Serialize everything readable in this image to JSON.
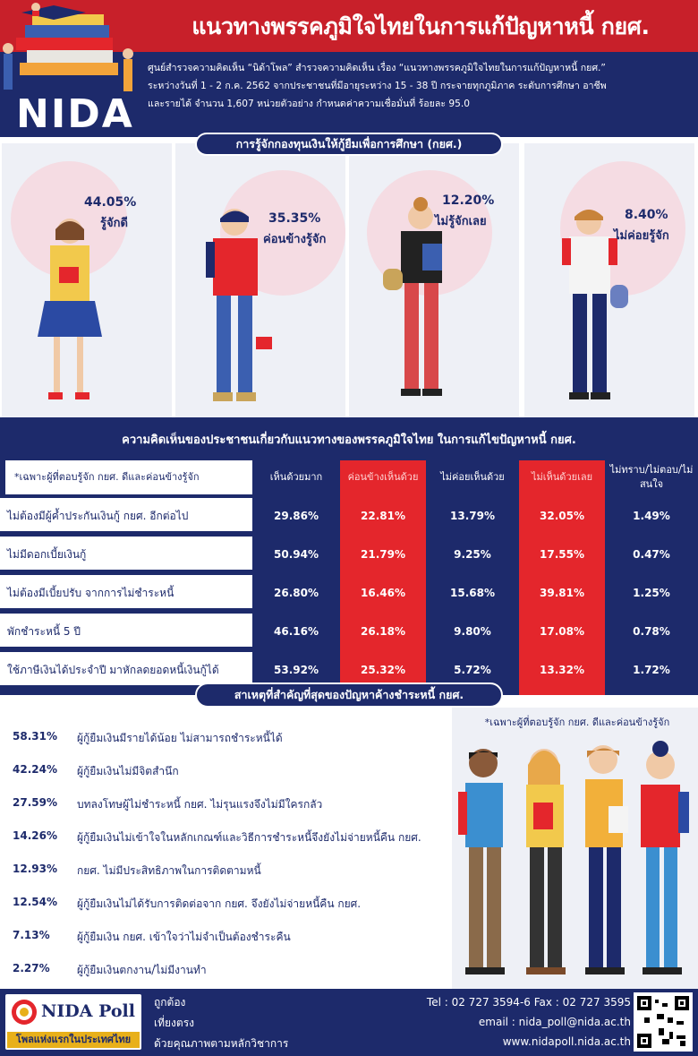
{
  "header": {
    "title": "แนวทางพรรคภูมิใจไทยในการแก้ปัญหาหนี้ กยศ.",
    "logo_text": "NIDA",
    "intro_lines": [
      "ศูนย์สำรวจความคิดเห็น “นิด้าโพล” สำรวจความคิดเห็น เรื่อง “แนวทางพรรคภูมิใจไทยในการแก้ปัญหาหนี้ กยศ.”",
      "ระหว่างวันที่ 1 - 2 ก.ค. 2562 จากประชาชนที่มีอายุระหว่าง 15 - 38 ปี กระจายทุกภูมิภาค ระดับการศึกษา อาชีพ",
      "และรายได้ จำนวน 1,607 หน่วยตัวอย่าง กำหนดค่าความเชื่อมั่นที่ ร้อยละ 95.0"
    ]
  },
  "awareness": {
    "title": "การรู้จักกองทุนเงินให้กู้ยืมเพื่อการศึกษา (กยศ.)",
    "items": [
      {
        "pct": "44.05%",
        "label": "รู้จักดี"
      },
      {
        "pct": "35.35%",
        "label": "ค่อนข้างรู้จัก"
      },
      {
        "pct": "12.20%",
        "label": "ไม่รู้จักเลย"
      },
      {
        "pct": "8.40%",
        "label": "ไม่ค่อยรู้จัก"
      }
    ]
  },
  "opinion": {
    "title": "ความคิดเห็นของประชาชนเกี่ยวกับแนวทางของพรรคภูมิใจไทย ในการแก้ไขปัญหาหนี้ กยศ.",
    "note": "*เฉพาะผู้ที่ตอบรู้จัก กยศ. ดีและค่อนข้างรู้จัก",
    "columns": [
      "เห็นด้วยมาก",
      "ค่อนข้างเห็นด้วย",
      "ไม่ค่อยเห็นด้วย",
      "ไม่เห็นด้วยเลย",
      "ไม่ทราบ/ไม่ตอบ/ไม่สนใจ"
    ],
    "rows": [
      {
        "label": "ไม่ต้องมีผู้ค้ำประกันเงินกู้ กยศ. อีกต่อไป",
        "values": [
          "29.86%",
          "22.81%",
          "13.79%",
          "32.05%",
          "1.49%"
        ]
      },
      {
        "label": "ไม่มีดอกเบี้ยเงินกู้",
        "values": [
          "50.94%",
          "21.79%",
          "9.25%",
          "17.55%",
          "0.47%"
        ]
      },
      {
        "label": "ไม่ต้องมีเบี้ยปรับ จากการไม่ชำระหนี้",
        "values": [
          "26.80%",
          "16.46%",
          "15.68%",
          "39.81%",
          "1.25%"
        ]
      },
      {
        "label": "พักชำระหนี้ 5 ปี",
        "values": [
          "46.16%",
          "26.18%",
          "9.80%",
          "17.08%",
          "0.78%"
        ]
      },
      {
        "label": "ใช้ภาษีเงินได้ประจำปี มาหักลดยอดหนี้เงินกู้ได้",
        "values": [
          "53.92%",
          "25.32%",
          "5.72%",
          "13.32%",
          "1.72%"
        ]
      }
    ]
  },
  "reasons": {
    "title": "สาเหตุที่สำคัญที่สุดของปัญหาค้างชำระหนี้ กยศ.",
    "note": "*เฉพาะผู้ที่ตอบรู้จัก กยศ. ดีและค่อนข้างรู้จัก",
    "items": [
      {
        "pct": "58.31%",
        "text": "ผู้กู้ยืมเงินมีรายได้น้อย ไม่สามารถชำระหนี้ได้"
      },
      {
        "pct": "42.24%",
        "text": "ผู้กู้ยืมเงินไม่มีจิตสำนึก"
      },
      {
        "pct": "27.59%",
        "text": "บทลงโทษผู้ไม่ชำระหนี้ กยศ. ไม่รุนแรงจึงไม่มีใครกลัว"
      },
      {
        "pct": "14.26%",
        "text": "ผู้กู้ยืมเงินไม่เข้าใจในหลักเกณฑ์และวิธีการชำระหนี้จึงยังไม่จ่ายหนี้คืน กยศ."
      },
      {
        "pct": "12.93%",
        "text": "กยศ. ไม่มีประสิทธิภาพในการติดตามหนี้"
      },
      {
        "pct": "12.54%",
        "text": "ผู้กู้ยืมเงินไม่ได้รับการติดต่อจาก กยศ. จึงยังไม่จ่ายหนี้คืน กยศ."
      },
      {
        "pct": "7.13%",
        "text": "ผู้กู้ยืมเงิน กยศ. เข้าใจว่าไม่จำเป็นต้องชำระคืน"
      },
      {
        "pct": "2.27%",
        "text": "ผู้กู้ยืมเงินตกงาน/ไม่มีงานทำ"
      }
    ]
  },
  "footer": {
    "brand": "NIDA Poll",
    "brand_tag": "โพลแห่งแรกในประเทศไทย",
    "slogans": [
      "ถูกต้อง",
      "เที่ยงตรง",
      "ด้วยคุณภาพตามหลักวิชาการ"
    ],
    "tel": "Tel : 02 727 3594-6 Fax : 02 727 3595",
    "email": "email : nida_poll@nida.ac.th",
    "web": "www.nidapoll.nida.ac.th"
  },
  "colors": {
    "navy": "#1d2a6b",
    "red": "#e4262c",
    "header_red": "#c8202a",
    "gold": "#e8b01a"
  }
}
